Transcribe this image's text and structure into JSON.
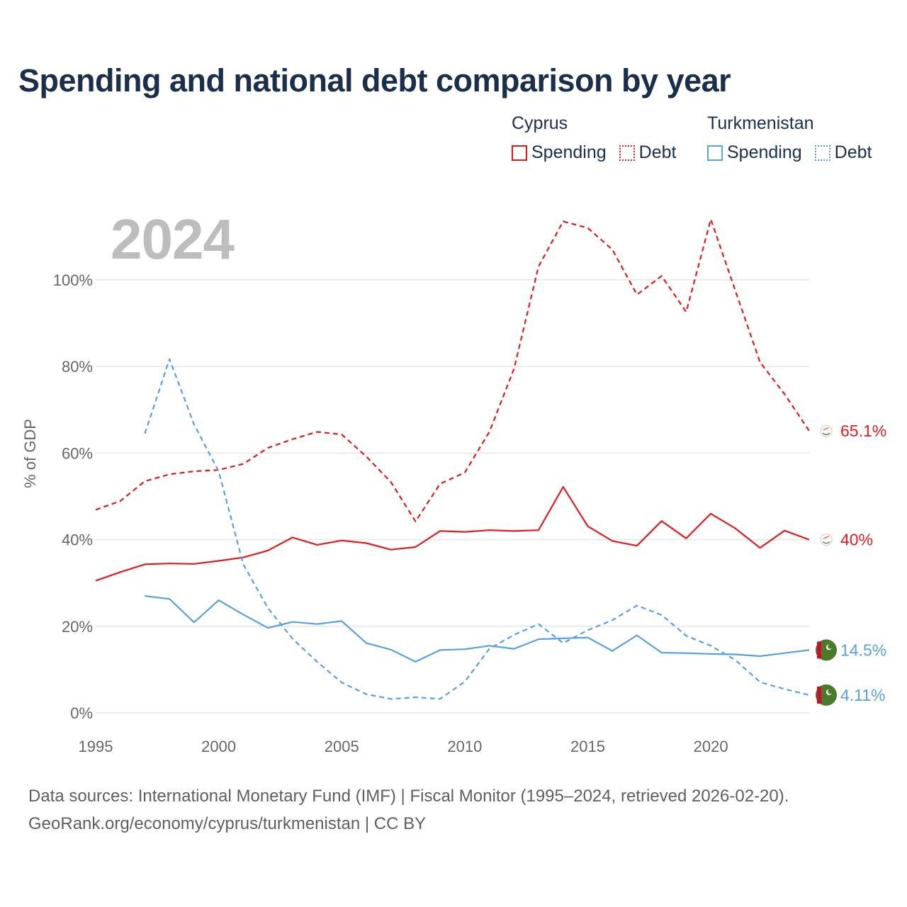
{
  "title": "Spending and national debt comparison by year",
  "year_label": "2024",
  "legend": {
    "groups": [
      {
        "name": "Cyprus",
        "color": "#e41a1c",
        "items": [
          {
            "label": "Spending",
            "style": "solid"
          },
          {
            "label": "Debt",
            "style": "dotted"
          }
        ]
      },
      {
        "name": "Turkmenistan",
        "color": "#5aa0e0",
        "items": [
          {
            "label": "Spending",
            "style": "solid"
          },
          {
            "label": "Debt",
            "style": "dotted"
          }
        ]
      }
    ]
  },
  "source": {
    "line1": "Data sources: International Monetary Fund (IMF) | Fiscal Monitor (1995–2024, retrieved 2026-02-20).",
    "line2": "GeoRank.org/economy/cyprus/turkmenistan | CC BY"
  },
  "chart_data": {
    "type": "line",
    "title": "Spending and national debt comparison by year",
    "xlabel": "",
    "ylabel": "% of GDP",
    "xlim": [
      1995,
      2024
    ],
    "ylim": [
      0,
      115
    ],
    "x_ticks": [
      1995,
      2000,
      2005,
      2010,
      2015,
      2020
    ],
    "y_ticks": [
      0,
      20,
      40,
      60,
      80,
      100
    ],
    "y_tick_labels": [
      "0%",
      "20%",
      "40%",
      "60%",
      "80%",
      "100%"
    ],
    "grid": true,
    "series": [
      {
        "name": "Cyprus Spending",
        "country": "Cyprus",
        "metric": "Spending",
        "color": "#e41a1c",
        "dashed": false,
        "end_label": "40%",
        "x": [
          1995,
          1996,
          1997,
          1998,
          1999,
          2000,
          2001,
          2002,
          2003,
          2004,
          2005,
          2006,
          2007,
          2008,
          2009,
          2010,
          2011,
          2012,
          2013,
          2014,
          2015,
          2016,
          2017,
          2018,
          2019,
          2020,
          2021,
          2022,
          2023,
          2024
        ],
        "values": [
          30.5,
          32.5,
          34.3,
          34.5,
          34.4,
          35.1,
          35.9,
          37.5,
          40.5,
          38.8,
          39.8,
          39.2,
          37.7,
          38.3,
          42.0,
          41.8,
          42.2,
          42.0,
          42.2,
          52.2,
          43.1,
          39.7,
          38.6,
          44.3,
          40.3,
          46.0,
          42.6,
          38.1,
          42.1,
          40.0
        ]
      },
      {
        "name": "Cyprus Debt",
        "country": "Cyprus",
        "metric": "Debt",
        "color": "#e41a1c",
        "dashed": true,
        "end_label": "65.1%",
        "x": [
          1995,
          1996,
          1997,
          1998,
          1999,
          2000,
          2001,
          2002,
          2003,
          2004,
          2005,
          2006,
          2007,
          2008,
          2009,
          2010,
          2011,
          2012,
          2013,
          2014,
          2015,
          2016,
          2017,
          2018,
          2019,
          2020,
          2021,
          2022,
          2023,
          2024
        ],
        "values": [
          46.9,
          48.9,
          53.5,
          55.1,
          55.8,
          56.1,
          57.5,
          61.2,
          63.2,
          64.9,
          64.3,
          59.2,
          53.3,
          44.2,
          52.9,
          55.5,
          64.9,
          79.4,
          103.1,
          113.5,
          112.0,
          107.0,
          96.6,
          100.9,
          92.6,
          114.0,
          97.5,
          81.0,
          73.6,
          65.1
        ]
      },
      {
        "name": "Turkmenistan Spending",
        "country": "Turkmenistan",
        "metric": "Spending",
        "color": "#5aa0e0",
        "dashed": false,
        "end_label": "14.5%",
        "x": [
          1997,
          1998,
          1999,
          2000,
          2001,
          2002,
          2003,
          2004,
          2005,
          2006,
          2007,
          2008,
          2009,
          2010,
          2011,
          2012,
          2013,
          2014,
          2015,
          2016,
          2017,
          2018,
          2019,
          2020,
          2021,
          2022,
          2023,
          2024
        ],
        "values": [
          27.0,
          26.3,
          20.9,
          26.0,
          22.7,
          19.6,
          21.0,
          20.5,
          21.2,
          16.1,
          14.6,
          11.8,
          14.5,
          14.7,
          15.5,
          14.8,
          17.0,
          17.2,
          17.4,
          14.3,
          17.9,
          13.9,
          13.8,
          13.6,
          13.5,
          13.1,
          13.8,
          14.5
        ]
      },
      {
        "name": "Turkmenistan Debt",
        "country": "Turkmenistan",
        "metric": "Debt",
        "color": "#5aa0e0",
        "dashed": true,
        "end_label": "4.11%",
        "x": [
          1997,
          1998,
          1999,
          2000,
          2001,
          2002,
          2003,
          2004,
          2005,
          2006,
          2007,
          2008,
          2009,
          2010,
          2011,
          2012,
          2013,
          2014,
          2015,
          2016,
          2017,
          2018,
          2019,
          2020,
          2021,
          2022,
          2023,
          2024
        ],
        "values": [
          64.5,
          81.7,
          66.6,
          55.8,
          34.3,
          24.2,
          17.1,
          11.8,
          7.0,
          4.3,
          3.2,
          3.6,
          3.2,
          7.2,
          14.8,
          18.0,
          20.5,
          16.1,
          19.1,
          21.4,
          24.8,
          22.6,
          17.8,
          15.5,
          12.2,
          7.1,
          5.5,
          4.11
        ]
      }
    ]
  }
}
